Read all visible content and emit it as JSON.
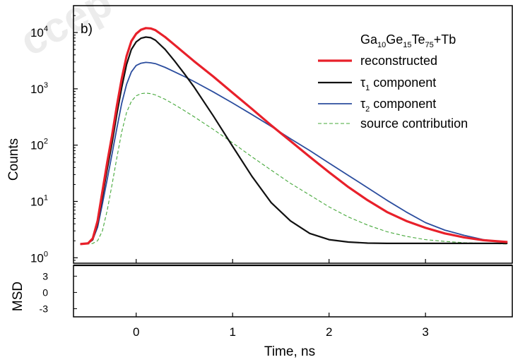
{
  "chart_data": {
    "type": "line",
    "panel_label": "b)",
    "xlabel": "Time, ns",
    "ylabel": "Counts",
    "residual_ylabel": "MSD",
    "xlim": [
      -0.65,
      3.9
    ],
    "ylim": [
      0.8,
      30000
    ],
    "yscale": "log",
    "residual_ylim": [
      -4.5,
      5.0
    ],
    "grid": false,
    "legend_position": "top-right",
    "legend_title": {
      "parts": [
        {
          "text": "Ga",
          "sub": false
        },
        {
          "text": "10",
          "sub": true
        },
        {
          "text": "Ge",
          "sub": false
        },
        {
          "text": "15",
          "sub": true
        },
        {
          "text": "Te",
          "sub": false
        },
        {
          "text": "75",
          "sub": true
        },
        {
          "text": "+Tb",
          "sub": false
        }
      ]
    },
    "x_ticks": [
      {
        "value": 0,
        "label": "0"
      },
      {
        "value": 1,
        "label": "1"
      },
      {
        "value": 2,
        "label": "2"
      },
      {
        "value": 3,
        "label": "3"
      }
    ],
    "y_ticks": [
      {
        "value": 1,
        "base": "10",
        "exp": "0"
      },
      {
        "value": 10,
        "base": "10",
        "exp": "1"
      },
      {
        "value": 100,
        "base": "10",
        "exp": "2"
      },
      {
        "value": 1000,
        "base": "10",
        "exp": "3"
      },
      {
        "value": 10000,
        "base": "10",
        "exp": "4"
      }
    ],
    "residual_ticks": [
      {
        "value": 3,
        "label": "3"
      },
      {
        "value": 0,
        "label": "0"
      },
      {
        "value": -3,
        "label": "-3"
      }
    ],
    "series": [
      {
        "name": "reconstructed",
        "name_parts": [
          {
            "text": "reconstructed",
            "sub": false
          }
        ],
        "color": "#e8202a",
        "dash": "solid",
        "x": [
          -0.58,
          -0.5,
          -0.45,
          -0.4,
          -0.35,
          -0.3,
          -0.25,
          -0.2,
          -0.15,
          -0.1,
          -0.05,
          0.0,
          0.05,
          0.1,
          0.15,
          0.2,
          0.3,
          0.4,
          0.5,
          0.6,
          0.8,
          1.0,
          1.2,
          1.4,
          1.6,
          1.8,
          2.0,
          2.2,
          2.4,
          2.6,
          2.8,
          3.0,
          3.2,
          3.4,
          3.6,
          3.85
        ],
        "y": [
          1.75,
          1.8,
          2.2,
          4.5,
          15,
          50,
          150,
          500,
          1500,
          3800,
          7000,
          9500,
          11200,
          12000,
          11800,
          11000,
          8300,
          6000,
          4300,
          3100,
          1650,
          850,
          440,
          225,
          118,
          62,
          33,
          18,
          10.5,
          6.5,
          4.5,
          3.4,
          2.7,
          2.3,
          2.05,
          1.9
        ]
      },
      {
        "name": "τ1 component",
        "name_parts": [
          {
            "text": "τ",
            "sub": false
          },
          {
            "text": "1",
            "sub": true
          },
          {
            "text": " component",
            "sub": false
          }
        ],
        "color": "#111111",
        "dash": "solid",
        "x": [
          -0.58,
          -0.5,
          -0.45,
          -0.4,
          -0.35,
          -0.3,
          -0.25,
          -0.2,
          -0.15,
          -0.1,
          -0.05,
          0.0,
          0.05,
          0.1,
          0.15,
          0.2,
          0.3,
          0.4,
          0.5,
          0.6,
          0.8,
          1.0,
          1.2,
          1.4,
          1.6,
          1.8,
          2.0,
          2.2,
          2.4,
          2.6,
          2.8,
          3.0,
          3.2,
          3.4,
          3.6,
          3.85
        ],
        "y": [
          1.75,
          1.8,
          2.1,
          4.0,
          12,
          38,
          110,
          360,
          1050,
          2700,
          5000,
          6800,
          7900,
          8300,
          8100,
          7300,
          5000,
          3100,
          1850,
          1080,
          330,
          95,
          28,
          9.5,
          4.5,
          2.7,
          2.1,
          1.9,
          1.82,
          1.8,
          1.8,
          1.8,
          1.8,
          1.8,
          1.8,
          1.8
        ]
      },
      {
        "name": "τ2 component",
        "name_parts": [
          {
            "text": "τ",
            "sub": false
          },
          {
            "text": "2",
            "sub": true
          },
          {
            "text": " component",
            "sub": false
          }
        ],
        "color": "#2b4d9e",
        "dash": "solid",
        "x": [
          -0.58,
          -0.5,
          -0.45,
          -0.4,
          -0.35,
          -0.3,
          -0.25,
          -0.2,
          -0.15,
          -0.1,
          -0.05,
          0.0,
          0.05,
          0.1,
          0.15,
          0.2,
          0.3,
          0.4,
          0.5,
          0.6,
          0.8,
          1.0,
          1.2,
          1.4,
          1.6,
          1.8,
          2.0,
          2.2,
          2.4,
          2.6,
          2.8,
          3.0,
          3.2,
          3.4,
          3.6,
          3.85
        ],
        "y": [
          1.75,
          1.8,
          2.1,
          3.5,
          9,
          25,
          70,
          200,
          550,
          1200,
          2000,
          2600,
          2850,
          2950,
          2900,
          2800,
          2400,
          2000,
          1650,
          1350,
          880,
          560,
          350,
          215,
          130,
          80,
          48,
          29,
          17.5,
          10.5,
          6.5,
          4.2,
          3.1,
          2.5,
          2.1,
          1.85
        ]
      },
      {
        "name": "source contribution",
        "name_parts": [
          {
            "text": "source contribution",
            "sub": false
          }
        ],
        "color": "#45a83a",
        "dash": "dashed",
        "x": [
          -0.58,
          -0.5,
          -0.45,
          -0.4,
          -0.35,
          -0.3,
          -0.25,
          -0.2,
          -0.15,
          -0.1,
          -0.05,
          0.0,
          0.05,
          0.1,
          0.15,
          0.2,
          0.3,
          0.4,
          0.5,
          0.6,
          0.8,
          1.0,
          1.2,
          1.4,
          1.6,
          1.8,
          2.0,
          2.2,
          2.4,
          2.6,
          2.8,
          3.0,
          3.2,
          3.4,
          3.6,
          3.85
        ],
        "y": [
          1.75,
          1.75,
          1.8,
          2.0,
          3.0,
          7,
          20,
          60,
          170,
          380,
          600,
          750,
          820,
          840,
          820,
          780,
          650,
          520,
          410,
          320,
          190,
          110,
          62,
          36,
          21,
          13,
          8,
          5.3,
          3.8,
          2.9,
          2.4,
          2.1,
          1.95,
          1.85,
          1.8,
          1.75
        ]
      }
    ],
    "residual": {
      "x": [
        -0.65,
        3.9
      ],
      "y": [
        5.0,
        5.0
      ]
    }
  }
}
